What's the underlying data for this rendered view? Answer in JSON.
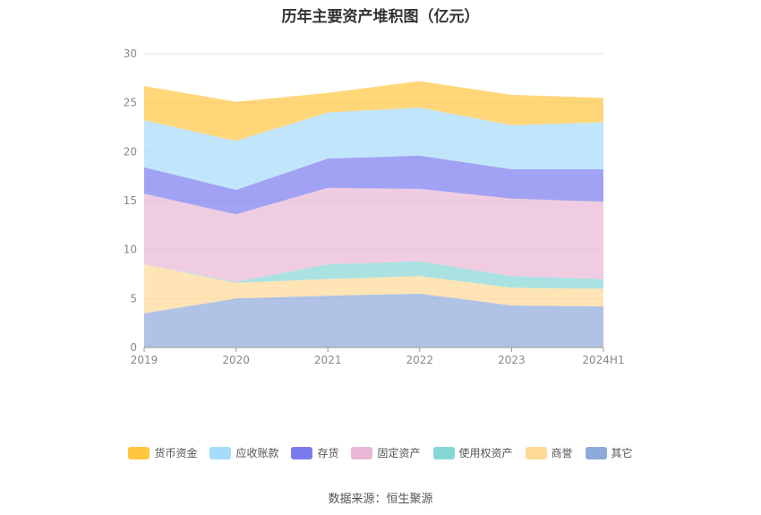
{
  "chart_data": {
    "type": "area",
    "stacked": true,
    "title": "历年主要资产堆积图（亿元）",
    "categories": [
      "2019",
      "2020",
      "2021",
      "2022",
      "2023",
      "2024H1"
    ],
    "ylim": [
      0,
      30
    ],
    "yticks": [
      0,
      5,
      10,
      15,
      20,
      25,
      30
    ],
    "grid": true,
    "legend_position": "bottom",
    "series": [
      {
        "name": "其它",
        "color": "#8eaadb",
        "values": [
          3.5,
          5.0,
          5.3,
          5.5,
          4.3,
          4.2
        ]
      },
      {
        "name": "商誉",
        "color": "#ffd996",
        "values": [
          5.0,
          1.6,
          1.7,
          1.8,
          1.8,
          1.8
        ]
      },
      {
        "name": "使用权资产",
        "color": "#86d6d6",
        "values": [
          0.0,
          0.1,
          1.5,
          1.5,
          1.2,
          1.0
        ]
      },
      {
        "name": "固定资产",
        "color": "#e8b6d6",
        "values": [
          7.2,
          6.9,
          7.8,
          7.4,
          7.9,
          7.9
        ]
      },
      {
        "name": "存货",
        "color": "#7b7bf0",
        "values": [
          2.7,
          2.5,
          3.0,
          3.4,
          3.0,
          3.3
        ]
      },
      {
        "name": "应收账款",
        "color": "#a6dcfa",
        "values": [
          4.8,
          5.0,
          4.7,
          4.9,
          4.5,
          4.8
        ]
      },
      {
        "name": "货币资金",
        "color": "#ffc640",
        "values": [
          3.5,
          4.0,
          2.0,
          2.7,
          3.1,
          2.5
        ]
      }
    ]
  },
  "source_text": "数据来源：恒生聚源"
}
